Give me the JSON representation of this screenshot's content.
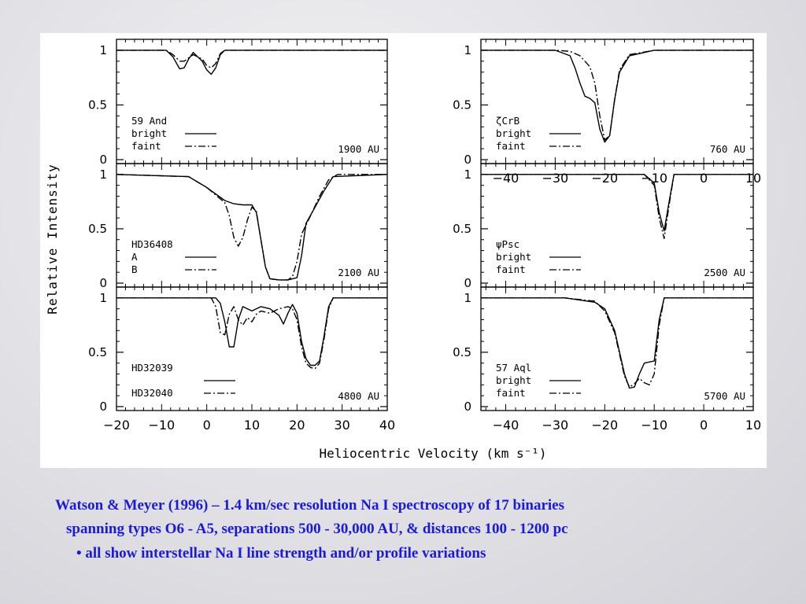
{
  "figure": {
    "ylabel": "Relative Intensity",
    "xlabel": "Heliocentric Velocity (km s⁻¹)"
  },
  "caption": {
    "line1": "Watson & Meyer (1996) – 1.4 km/sec resolution Na I spectroscopy of 17 binaries",
    "line2": "spanning types O6 - A5, separations 500 - 30,000 AU, & distances 100 - 1200 pc",
    "line3": "• all show interstellar Na I line strength and/or profile variations"
  },
  "colors": {
    "caption": "#1a1ad8",
    "ink": "#000000"
  },
  "chart_data": [
    {
      "type": "line",
      "column": "left",
      "row": 1,
      "star": "59 And",
      "separation": "1900 AU",
      "xlim": [
        -20,
        40
      ],
      "ylim": [
        0,
        1.1
      ],
      "yticks": [
        0,
        0.5,
        1
      ],
      "yticklabels": [
        "0",
        "0.5",
        "1"
      ],
      "series": [
        {
          "name": "bright",
          "x": [
            -20,
            -9,
            -7.5,
            -6,
            -5,
            -4,
            -3,
            -1,
            0,
            1,
            2,
            3,
            4,
            40
          ],
          "y": [
            1,
            1,
            0.94,
            0.83,
            0.84,
            0.92,
            0.98,
            0.9,
            0.82,
            0.78,
            0.84,
            0.96,
            1,
            1
          ]
        },
        {
          "name": "faint",
          "x": [
            -20,
            -9,
            -7.5,
            -6,
            -5,
            -4,
            -3,
            -1,
            0,
            1,
            2,
            3,
            4,
            40
          ],
          "y": [
            1,
            1,
            0.96,
            0.9,
            0.9,
            0.93,
            0.96,
            0.92,
            0.86,
            0.84,
            0.88,
            0.97,
            1,
            1
          ]
        }
      ]
    },
    {
      "type": "line",
      "column": "right",
      "row": 1,
      "star": "ζCrB",
      "separation": "760 AU",
      "xlim": [
        -45,
        10
      ],
      "ylim": [
        0,
        1.1
      ],
      "yticks": [
        0,
        0.5,
        1
      ],
      "yticklabels": [
        "0",
        "0.5",
        "1"
      ],
      "xticks": [
        -40,
        -30,
        -20,
        -10,
        0,
        10
      ],
      "xticklabels": [
        "−40",
        "−30",
        "−20",
        "−10",
        "0",
        "10"
      ],
      "series": [
        {
          "name": "bright",
          "x": [
            -45,
            -30,
            -27,
            -26,
            -25,
            -24,
            -23,
            -22,
            -21,
            -20,
            -19,
            -18,
            -17,
            -15,
            -10,
            10
          ],
          "y": [
            1,
            1,
            0.95,
            0.84,
            0.7,
            0.58,
            0.56,
            0.52,
            0.28,
            0.16,
            0.22,
            0.55,
            0.8,
            0.95,
            1,
            1
          ]
        },
        {
          "name": "faint",
          "x": [
            -45,
            -30,
            -27,
            -25,
            -23,
            -22,
            -21,
            -20,
            -19,
            -18,
            -17,
            -15,
            -10,
            10
          ],
          "y": [
            1,
            1,
            0.99,
            0.95,
            0.85,
            0.7,
            0.4,
            0.18,
            0.22,
            0.55,
            0.82,
            0.96,
            1,
            1
          ]
        }
      ]
    },
    {
      "type": "line",
      "column": "left",
      "row": 2,
      "star": "HD36408",
      "separation": "2100 AU",
      "xlim": [
        -20,
        40
      ],
      "ylim": [
        0,
        1.1
      ],
      "yticks": [
        0,
        0.5,
        1
      ],
      "yticklabels": [
        "0",
        "0.5",
        "1"
      ],
      "series": [
        {
          "name": "A",
          "x": [
            -20,
            -4,
            0,
            4,
            6,
            8,
            10,
            11,
            12,
            13,
            14,
            16,
            18,
            20,
            21,
            22,
            24,
            26,
            28,
            40
          ],
          "y": [
            1,
            0.98,
            0.88,
            0.76,
            0.73,
            0.72,
            0.72,
            0.65,
            0.4,
            0.15,
            0.04,
            0.03,
            0.03,
            0.05,
            0.25,
            0.55,
            0.7,
            0.85,
            0.98,
            1
          ]
        },
        {
          "name": "B",
          "x": [
            -20,
            -4,
            0,
            4,
            5,
            6,
            7,
            8,
            9,
            10,
            11,
            12,
            13,
            14,
            16,
            18,
            19,
            20,
            21,
            23,
            25,
            27,
            29,
            40
          ],
          "y": [
            1,
            0.98,
            0.88,
            0.74,
            0.62,
            0.42,
            0.34,
            0.42,
            0.58,
            0.7,
            0.66,
            0.4,
            0.15,
            0.04,
            0.03,
            0.03,
            0.06,
            0.2,
            0.45,
            0.62,
            0.8,
            0.95,
            1,
            1
          ]
        }
      ]
    },
    {
      "type": "line",
      "column": "right",
      "row": 2,
      "star": "ψPsc",
      "separation": "2500 AU",
      "xlim": [
        -45,
        10
      ],
      "ylim": [
        0,
        1.1
      ],
      "yticks": [
        0,
        0.5,
        1
      ],
      "yticklabels": [
        "0",
        "0.5",
        "1"
      ],
      "series": [
        {
          "name": "bright",
          "x": [
            -45,
            -12,
            -10,
            -9,
            -8,
            -7,
            -6,
            10
          ],
          "y": [
            1,
            1,
            0.92,
            0.65,
            0.48,
            0.75,
            1,
            1
          ]
        },
        {
          "name": "faint",
          "x": [
            -45,
            -12,
            -10,
            -9,
            -8,
            -7,
            -6,
            10
          ],
          "y": [
            1,
            1,
            0.9,
            0.6,
            0.41,
            0.72,
            1,
            1
          ]
        }
      ]
    },
    {
      "type": "line",
      "column": "left",
      "row": 3,
      "star": "HD32039",
      "star2": "HD32040",
      "separation": "4800 AU",
      "xlim": [
        -20,
        40
      ],
      "ylim": [
        0,
        1.1
      ],
      "yticks": [
        0,
        0.5,
        1
      ],
      "yticklabels": [
        "0",
        "0.5",
        "1"
      ],
      "xticks": [
        -20,
        -10,
        0,
        10,
        20,
        30,
        40
      ],
      "xticklabels": [
        "−20",
        "−10",
        "0",
        "10",
        "20",
        "30",
        "40"
      ],
      "series": [
        {
          "name": "HD32039",
          "x": [
            -20,
            2,
            3,
            4,
            5,
            6,
            7,
            8,
            10,
            12,
            14,
            16,
            17,
            18,
            19,
            20,
            21,
            22,
            23,
            24,
            25,
            26,
            27,
            28,
            40
          ],
          "y": [
            1,
            1,
            0.95,
            0.78,
            0.55,
            0.55,
            0.8,
            0.92,
            0.88,
            0.92,
            0.9,
            0.84,
            0.76,
            0.86,
            0.94,
            0.86,
            0.6,
            0.44,
            0.38,
            0.38,
            0.42,
            0.65,
            0.92,
            1,
            1
          ]
        },
        {
          "name": "HD32040",
          "x": [
            -20,
            1,
            2,
            3,
            4,
            5,
            6,
            7,
            8,
            9,
            10,
            11,
            12,
            14,
            16,
            18,
            19,
            20,
            21,
            22,
            23,
            24,
            25,
            26,
            27,
            28,
            40
          ],
          "y": [
            1,
            1,
            0.92,
            0.68,
            0.66,
            0.85,
            0.92,
            0.8,
            0.75,
            0.82,
            0.78,
            0.85,
            0.88,
            0.86,
            0.9,
            0.92,
            0.9,
            0.8,
            0.55,
            0.4,
            0.36,
            0.35,
            0.4,
            0.62,
            0.9,
            1,
            1
          ]
        }
      ]
    },
    {
      "type": "line",
      "column": "right",
      "row": 3,
      "star": "57 Aql",
      "separation": "5700 AU",
      "xlim": [
        -45,
        10
      ],
      "ylim": [
        0,
        1.1
      ],
      "yticks": [
        0,
        0.5,
        1
      ],
      "yticklabels": [
        "0",
        "0.5",
        "1"
      ],
      "xticks": [
        -40,
        -30,
        -20,
        -10,
        0,
        10
      ],
      "xticklabels": [
        "−40",
        "−30",
        "−20",
        "−10",
        "0",
        "10"
      ],
      "series": [
        {
          "name": "bright",
          "x": [
            -45,
            -28,
            -22,
            -20,
            -18,
            -16,
            -15,
            -14,
            -13,
            -12,
            -11,
            -10,
            -9,
            -8,
            10
          ],
          "y": [
            1,
            1,
            0.96,
            0.9,
            0.7,
            0.3,
            0.17,
            0.18,
            0.3,
            0.4,
            0.41,
            0.42,
            0.8,
            1,
            1
          ]
        },
        {
          "name": "faint",
          "x": [
            -45,
            -28,
            -22,
            -20,
            -18,
            -16,
            -15,
            -14,
            -13,
            -12,
            -11,
            -10,
            -9,
            -8,
            10
          ],
          "y": [
            1,
            1,
            0.97,
            0.88,
            0.68,
            0.28,
            0.18,
            0.21,
            0.26,
            0.22,
            0.2,
            0.3,
            0.75,
            1,
            1
          ]
        }
      ]
    }
  ]
}
